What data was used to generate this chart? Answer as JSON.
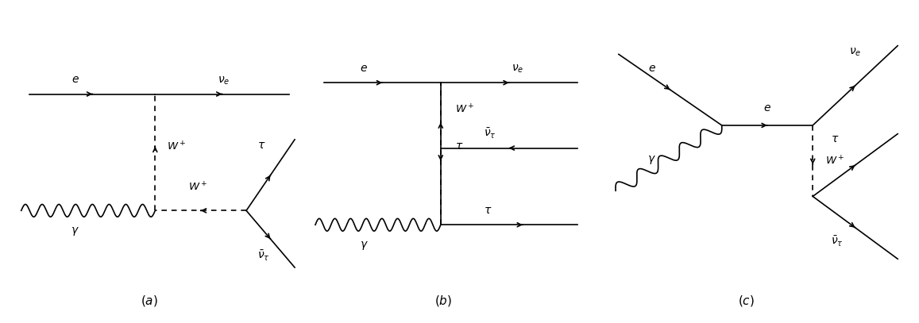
{
  "fig_width": 11.57,
  "fig_height": 4.07,
  "bg_color": "#ffffff",
  "line_color": "#000000",
  "font_size_label": 10,
  "font_size_caption": 11,
  "lw": 1.2
}
